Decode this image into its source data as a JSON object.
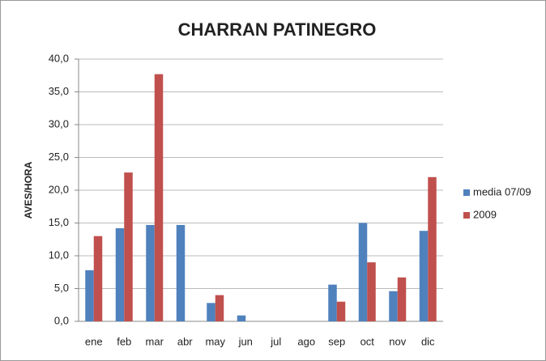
{
  "chart_data": {
    "type": "bar",
    "title": "CHARRAN PATINEGRO",
    "y_label": "AVES/HORA",
    "categories": [
      "ene",
      "feb",
      "mar",
      "abr",
      "may",
      "jun",
      "jul",
      "ago",
      "sep",
      "oct",
      "nov",
      "dic"
    ],
    "series": [
      {
        "name": "media 07/09",
        "color": "#4f81bd",
        "values": [
          7.8,
          14.2,
          14.7,
          14.7,
          2.8,
          0.9,
          0,
          0,
          5.6,
          15.0,
          4.6,
          13.8
        ]
      },
      {
        "name": "2009",
        "color": "#c0504d",
        "values": [
          13.0,
          22.7,
          37.7,
          0,
          4.0,
          0,
          0,
          0,
          3.0,
          9.0,
          6.7,
          22.0
        ]
      }
    ],
    "ylim": [
      0,
      40
    ],
    "yticks": [
      {
        "value": 0,
        "label": "0,0"
      },
      {
        "value": 5,
        "label": "5,0"
      },
      {
        "value": 10,
        "label": "10,0"
      },
      {
        "value": 15,
        "label": "15,0"
      },
      {
        "value": 20,
        "label": "20,0"
      },
      {
        "value": 25,
        "label": "25,0"
      },
      {
        "value": 30,
        "label": "30,0"
      },
      {
        "value": 35,
        "label": "35,0"
      },
      {
        "value": 40,
        "label": "40,0"
      }
    ],
    "grid": true,
    "legend": "right"
  }
}
